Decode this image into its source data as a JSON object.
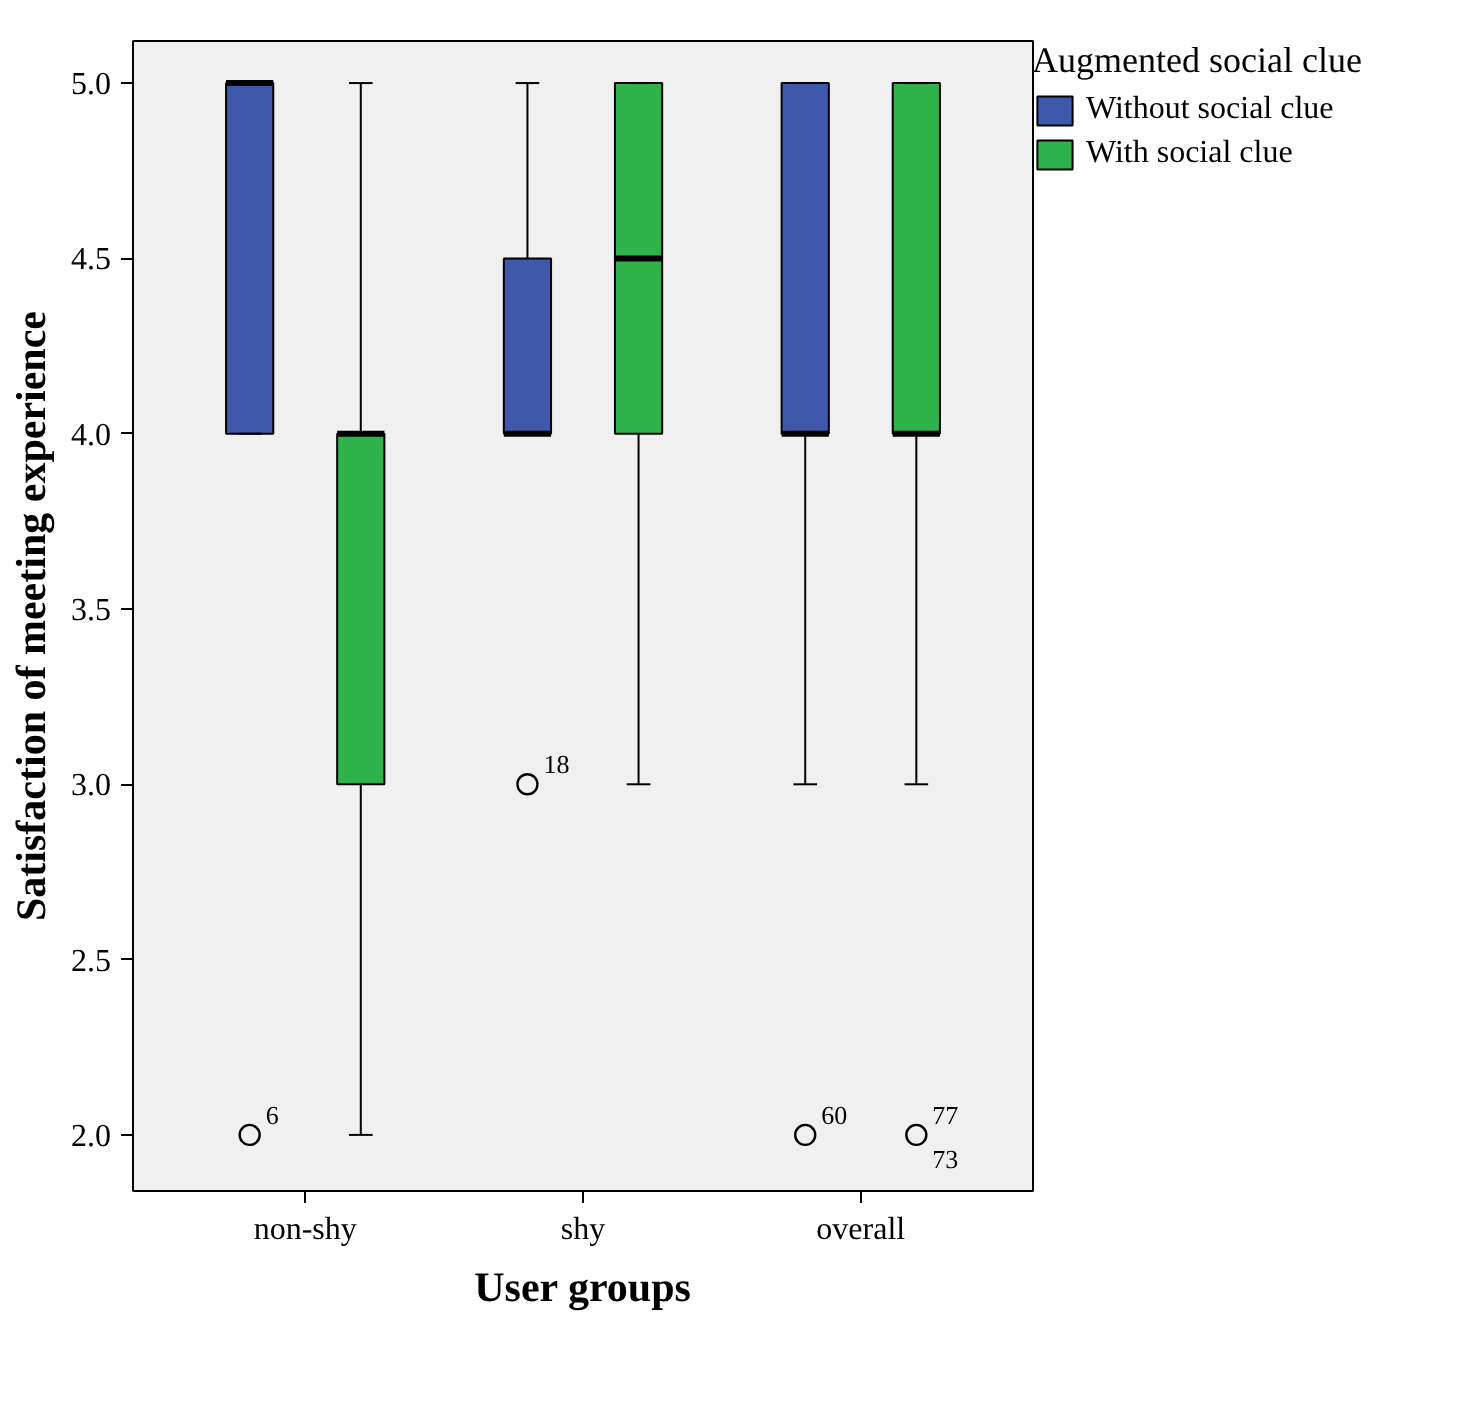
{
  "chart_data": {
    "type": "box",
    "xlabel": "User groups",
    "ylabel": "Satisfaction of meeting experience",
    "legend_title": "Augmented social clue",
    "categories": [
      "non-shy",
      "shy",
      "overall"
    ],
    "series": [
      {
        "name": "Without social clue",
        "color": "#3e58ac",
        "boxes": [
          {
            "low": 4,
            "q1": 4,
            "median": 5,
            "q3": 5,
            "high": 5,
            "outliers": [
              2
            ]
          },
          {
            "low": 4,
            "q1": 4,
            "median": 4,
            "q3": 4.5,
            "high": 5,
            "outliers": [
              3
            ]
          },
          {
            "low": 3,
            "q1": 4,
            "median": 4,
            "q3": 5,
            "high": 5,
            "outliers": [
              2
            ]
          }
        ]
      },
      {
        "name": "With social clue",
        "color": "#2eb34a",
        "boxes": [
          {
            "low": 2,
            "q1": 3,
            "median": 4,
            "q3": 4,
            "high": 5
          },
          {
            "low": 3,
            "q1": 4,
            "median": 4.5,
            "q3": 5,
            "high": 5
          },
          {
            "low": 3,
            "q1": 4,
            "median": 4,
            "q3": 5,
            "high": 5,
            "outliers": [
              2
            ]
          }
        ]
      }
    ],
    "ylim": [
      1.84,
      5.12
    ],
    "yticks": [
      {
        "value": 2,
        "label": "2.0"
      },
      {
        "value": 2.5,
        "label": "2.5"
      },
      {
        "value": 3,
        "label": "3.0"
      },
      {
        "value": 3.5,
        "label": "3.5"
      },
      {
        "value": 4,
        "label": "4.0"
      },
      {
        "value": 4.5,
        "label": "4.5"
      },
      {
        "value": 5,
        "label": "5.0"
      }
    ],
    "annotations": [
      "6",
      "18",
      "60",
      "77",
      "73"
    ],
    "grid": false,
    "legend": "right"
  }
}
